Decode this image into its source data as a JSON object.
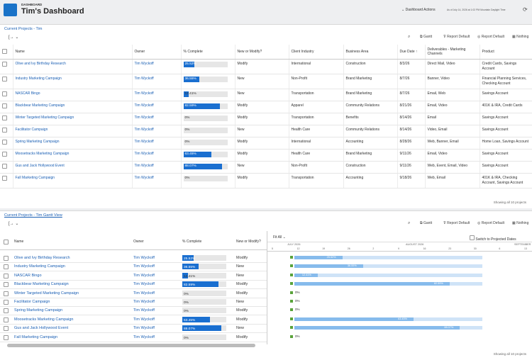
{
  "header": {
    "eyebrow": "DASHBOARD",
    "title": "Tim's Dashboard",
    "actions": "Dashboard Actions",
    "timestamp": "As of July 14, 2026 at 1:02 PM Mountain Daylight Time"
  },
  "report1": {
    "title": "Current Projects - Tim",
    "toolbar": [
      "Gantt",
      "Report Default",
      "Report Default",
      "Nothing"
    ],
    "columns": [
      "Name",
      "Owner",
      "% Complete",
      "New or Modify?",
      "Client Industry",
      "Business Area",
      "Due Date ↑",
      "Deliverables - Marketing Channels",
      "Product"
    ],
    "rows": [
      {
        "name": "Olive and Ivy Birthday Research",
        "owner": "Tim Wyckoff",
        "complete": 25.52,
        "complete_label": "25.52%",
        "type": "Modify",
        "industry": "International",
        "area": "Construction",
        "due": "8/3/26",
        "channels": "Direct Mail, Video",
        "product": "Credit Cards, Savings Account"
      },
      {
        "name": "Industry Marketing Campaign",
        "owner": "Tim Wyckoff",
        "complete": 36.55,
        "complete_label": "36.55%",
        "type": "New",
        "industry": "Non-Profit",
        "area": "Brand Marketing",
        "due": "8/7/26",
        "channels": "Banner, Video",
        "product": "Financial Planning Services, Checking Account"
      },
      {
        "name": "NASCAR Bingo",
        "owner": "Tim Wyckoff",
        "complete": 12.41,
        "complete_label": "12.41%",
        "type": "New",
        "industry": "Transportation",
        "area": "Brand Marketing",
        "due": "8/7/26",
        "channels": "Email, Web",
        "product": "Savings Account"
      },
      {
        "name": "Blackbear Marketing Campaign",
        "owner": "Tim Wyckoff",
        "complete": 82.59,
        "complete_label": "82.59%",
        "type": "Modify",
        "industry": "Apparel",
        "area": "Community Relations",
        "due": "8/21/26",
        "channels": "Email, Video",
        "product": "401K & IRA, Credit Cards"
      },
      {
        "name": "Winter Targeted Marketing Campaign",
        "owner": "Tim Wyckoff",
        "complete": 0,
        "complete_label": "0%",
        "type": "Modify",
        "industry": "Transportation",
        "area": "Benefits",
        "due": "8/14/26",
        "channels": "Email",
        "product": "Savings Account"
      },
      {
        "name": "Facilitator Campaign",
        "owner": "Tim Wyckoff",
        "complete": 0,
        "complete_label": "0%",
        "type": "New",
        "industry": "Health Care",
        "area": "Community Relations",
        "due": "8/14/26",
        "channels": "Video, Email",
        "product": "Savings Account"
      },
      {
        "name": "Spring Marketing Campaign",
        "owner": "Tim Wyckoff",
        "complete": 0,
        "complete_label": "0%",
        "type": "Modify",
        "industry": "International",
        "area": "Accounting",
        "due": "8/28/26",
        "channels": "Web, Banner, Email",
        "product": "Home Loan, Savings Account"
      },
      {
        "name": "Moosetracks Marketing Campaign",
        "owner": "Tim Wyckoff",
        "complete": 63.45,
        "complete_label": "63.45%",
        "type": "Modify",
        "industry": "Health Care",
        "area": "Brand Marketing",
        "due": "9/11/26",
        "channels": "Email, Video",
        "product": "Savings Account"
      },
      {
        "name": "Gus and Jack Hollywood Event",
        "owner": "Tim Wyckoff",
        "complete": 88.07,
        "complete_label": "88.07%",
        "type": "New",
        "industry": "Non-Profit",
        "area": "Construction",
        "due": "9/11/26",
        "channels": "Web, Event, Email, Video",
        "product": "Savings Account"
      },
      {
        "name": "Fall Marketing Campaign",
        "owner": "Tim Wyckoff",
        "complete": 0,
        "complete_label": "0%",
        "type": "Modify",
        "industry": "Transportation",
        "area": "Accounting",
        "due": "9/18/26",
        "channels": "Web, Email",
        "product": "401K & IRA, Checking Account, Savings Account"
      }
    ],
    "footer": "Showing all 10 projects"
  },
  "report2": {
    "title": "Current Projects - Tim Gantt View",
    "toolbar": [
      "Gantt",
      "Report Default",
      "Report Default",
      "Nothing"
    ],
    "columns": [
      "Name",
      "Owner",
      "% Complete",
      "New or Modify?"
    ],
    "gantt": {
      "fit": "Fit All",
      "switch": "Switch to Projected Dates",
      "months": [
        "JULY 2026",
        "AUGUST 2026",
        "SEPTEMBER"
      ],
      "days": [
        "5",
        "12",
        "19",
        "26",
        "2",
        "9",
        "16",
        "23",
        "30",
        "6",
        "13"
      ]
    },
    "footer": "Showing all 10 projects"
  }
}
